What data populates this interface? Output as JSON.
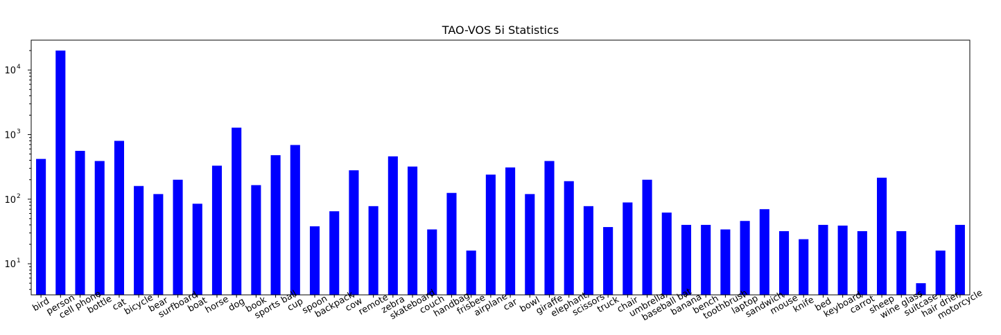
{
  "chart_data": {
    "type": "bar",
    "title": "TAO-VOS 5i Statistics",
    "xlabel": "",
    "ylabel": "",
    "yscale": "log",
    "ylim": [
      3.3,
      29000
    ],
    "grid": false,
    "legend": "none",
    "bar_color": "#0000ff",
    "categories": [
      "bird",
      "person",
      "cell phone",
      "bottle",
      "cat",
      "bicycle",
      "bear",
      "surfboard",
      "boat",
      "horse",
      "dog",
      "book",
      "sports ball",
      "cup",
      "spoon",
      "backpack",
      "cow",
      "remote",
      "zebra",
      "skateboard",
      "couch",
      "handbag",
      "frisbee",
      "airplane",
      "car",
      "bowl",
      "giraffe",
      "elephant",
      "scissors",
      "truck",
      "chair",
      "umbrella",
      "baseball bat",
      "banana",
      "bench",
      "toothbrush",
      "laptop",
      "sandwich",
      "mouse",
      "knife",
      "bed",
      "keyboard",
      "carrot",
      "sheep",
      "wine glass",
      "suitcase",
      "hair drier",
      "motorcycle"
    ],
    "values": [
      420,
      20000,
      560,
      390,
      800,
      160,
      120,
      200,
      85,
      330,
      1280,
      165,
      480,
      690,
      38,
      65,
      280,
      78,
      460,
      320,
      34,
      125,
      16,
      240,
      310,
      120,
      390,
      190,
      78,
      37,
      89,
      200,
      62,
      40,
      40,
      34,
      46,
      70,
      32,
      24,
      40,
      39,
      32,
      215,
      32,
      5,
      16,
      40
    ],
    "yticks": [
      {
        "base": "10",
        "exp": "1",
        "value": 10
      },
      {
        "base": "10",
        "exp": "2",
        "value": 100
      },
      {
        "base": "10",
        "exp": "3",
        "value": 1000
      },
      {
        "base": "10",
        "exp": "4",
        "value": 10000
      }
    ]
  }
}
